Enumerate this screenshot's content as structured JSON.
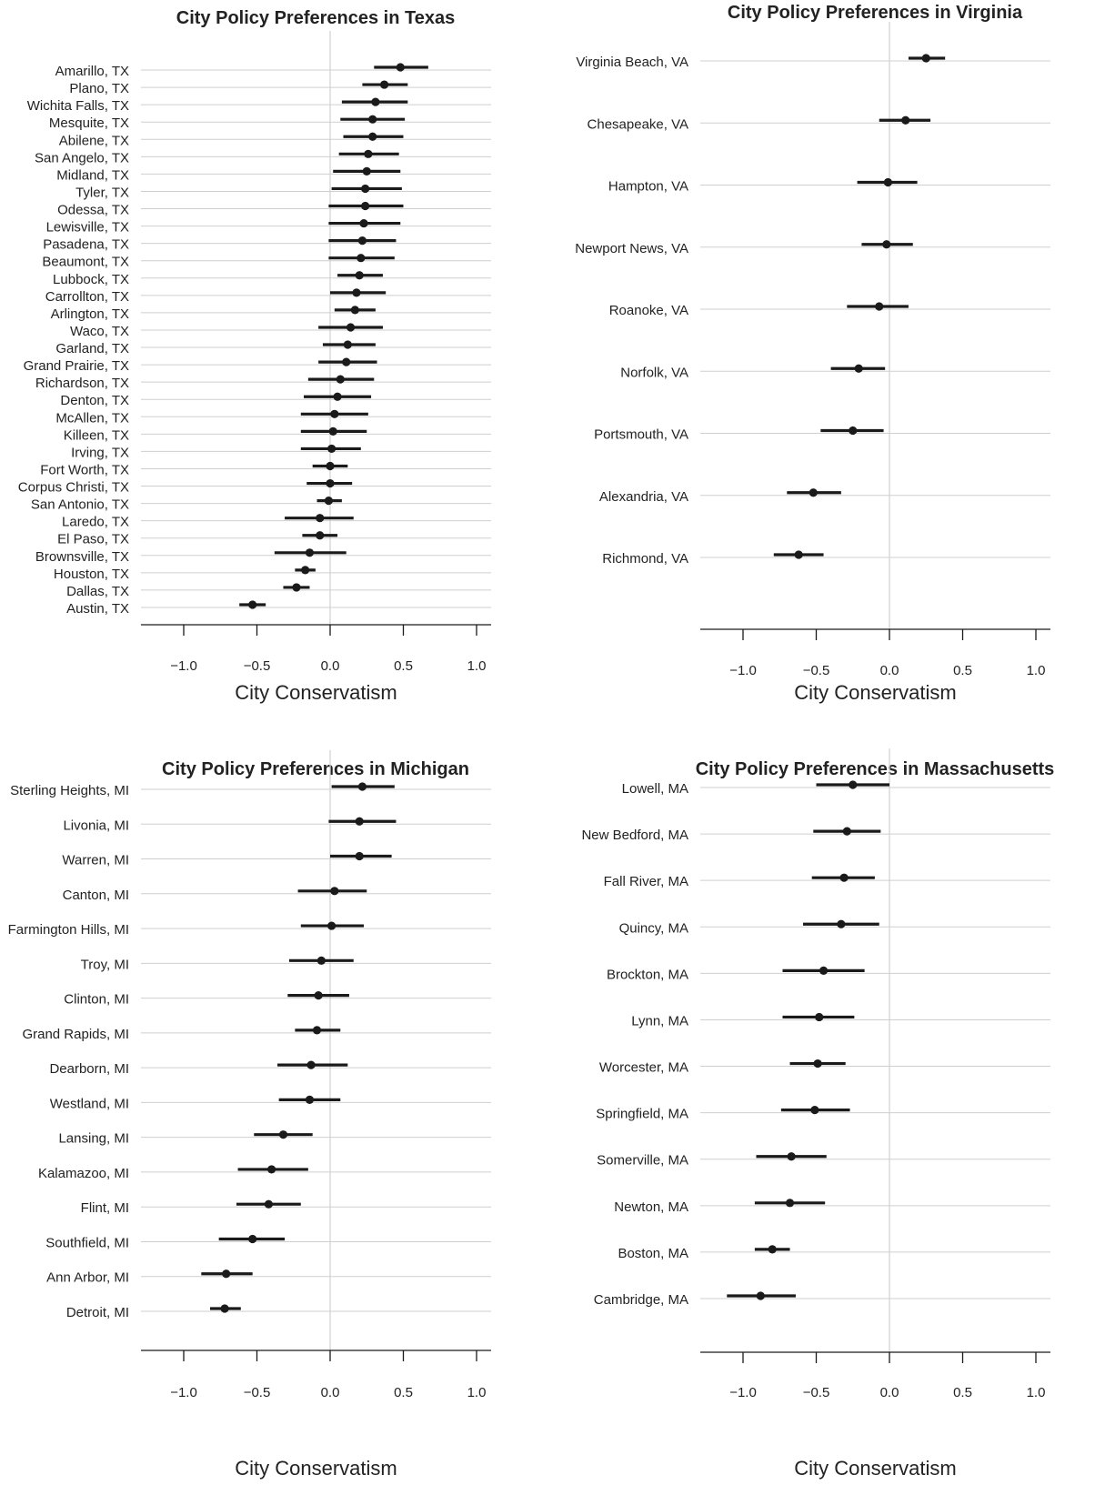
{
  "chart_data": [
    {
      "type": "scatter",
      "title": "City Policy Preferences in Texas",
      "xlabel": "City Conservatism",
      "xlim": [
        -1.2,
        1.05
      ],
      "xticks": [
        -1.0,
        -0.5,
        0.0,
        0.5,
        1.0
      ],
      "xtick_labels": [
        "−1.0",
        "−0.5",
        "0.0",
        "0.5",
        "1.0"
      ],
      "grid": true,
      "categories": [
        "Amarillo, TX",
        "Plano, TX",
        "Wichita Falls, TX",
        "Mesquite, TX",
        "Abilene, TX",
        "San Angelo, TX",
        "Midland, TX",
        "Tyler, TX",
        "Odessa, TX",
        "Lewisville, TX",
        "Pasadena, TX",
        "Beaumont, TX",
        "Lubbock, TX",
        "Carrollton, TX",
        "Arlington, TX",
        "Waco, TX",
        "Garland, TX",
        "Grand Prairie, TX",
        "Richardson, TX",
        "Denton, TX",
        "McAllen, TX",
        "Killeen, TX",
        "Irving, TX",
        "Fort Worth, TX",
        "Corpus Christi, TX",
        "San Antonio, TX",
        "Laredo, TX",
        "El Paso, TX",
        "Brownsville, TX",
        "Houston, TX",
        "Dallas, TX",
        "Austin, TX"
      ],
      "values": [
        0.48,
        0.37,
        0.31,
        0.29,
        0.29,
        0.26,
        0.25,
        0.24,
        0.24,
        0.23,
        0.22,
        0.21,
        0.2,
        0.18,
        0.17,
        0.14,
        0.12,
        0.11,
        0.07,
        0.05,
        0.03,
        0.02,
        0.01,
        0.0,
        0.0,
        -0.01,
        -0.07,
        -0.07,
        -0.14,
        -0.17,
        -0.23,
        -0.53
      ],
      "lower": [
        0.3,
        0.22,
        0.08,
        0.07,
        0.09,
        0.06,
        0.02,
        0.01,
        -0.01,
        -0.01,
        -0.01,
        -0.01,
        0.05,
        0.0,
        0.03,
        -0.08,
        -0.05,
        -0.08,
        -0.15,
        -0.18,
        -0.2,
        -0.2,
        -0.2,
        -0.12,
        -0.16,
        -0.09,
        -0.31,
        -0.19,
        -0.38,
        -0.24,
        -0.32,
        -0.62
      ],
      "upper": [
        0.67,
        0.53,
        0.53,
        0.51,
        0.5,
        0.47,
        0.48,
        0.49,
        0.5,
        0.48,
        0.45,
        0.44,
        0.36,
        0.38,
        0.31,
        0.36,
        0.31,
        0.32,
        0.3,
        0.28,
        0.26,
        0.25,
        0.21,
        0.12,
        0.15,
        0.08,
        0.16,
        0.05,
        0.11,
        -0.1,
        -0.14,
        -0.44
      ]
    },
    {
      "type": "scatter",
      "title": "City Policy Preferences in Virginia",
      "xlabel": "City Conservatism",
      "xlim": [
        -1.3,
        1.1
      ],
      "xticks": [
        -1.0,
        -0.5,
        0.0,
        0.5,
        1.0
      ],
      "xtick_labels": [
        "−1.0",
        "−0.5",
        "0.0",
        "0.5",
        "1.0"
      ],
      "grid": true,
      "categories": [
        "Virginia Beach, VA",
        "Chesapeake, VA",
        "Hampton, VA",
        "Newport News, VA",
        "Roanoke, VA",
        "Norfolk, VA",
        "Portsmouth, VA",
        "Alexandria, VA",
        "Richmond, VA"
      ],
      "values": [
        0.25,
        0.11,
        -0.01,
        -0.02,
        -0.07,
        -0.21,
        -0.25,
        -0.52,
        -0.62
      ],
      "lower": [
        0.13,
        -0.07,
        -0.22,
        -0.19,
        -0.29,
        -0.4,
        -0.47,
        -0.7,
        -0.79
      ],
      "upper": [
        0.38,
        0.28,
        0.19,
        0.16,
        0.13,
        -0.03,
        -0.04,
        -0.33,
        -0.45
      ]
    },
    {
      "type": "scatter",
      "title": "City Policy Preferences in Michigan",
      "xlabel": "City Conservatism",
      "xlim": [
        -1.2,
        1.05
      ],
      "xticks": [
        -1.0,
        -0.5,
        0.0,
        0.5,
        1.0
      ],
      "xtick_labels": [
        "−1.0",
        "−0.5",
        "0.0",
        "0.5",
        "1.0"
      ],
      "grid": true,
      "categories": [
        "Sterling Heights, MI",
        "Livonia, MI",
        "Warren, MI",
        "Canton, MI",
        "Farmington Hills, MI",
        "Troy, MI",
        "Clinton, MI",
        "Grand Rapids, MI",
        "Dearborn, MI",
        "Westland, MI",
        "Lansing, MI",
        "Kalamazoo, MI",
        "Flint, MI",
        "Southfield, MI",
        "Ann Arbor, MI",
        "Detroit, MI"
      ],
      "values": [
        0.22,
        0.2,
        0.2,
        0.03,
        0.01,
        -0.06,
        -0.08,
        -0.09,
        -0.13,
        -0.14,
        -0.32,
        -0.4,
        -0.42,
        -0.53,
        -0.71,
        -0.72
      ],
      "lower": [
        0.01,
        -0.01,
        0.0,
        -0.22,
        -0.2,
        -0.28,
        -0.29,
        -0.24,
        -0.36,
        -0.35,
        -0.52,
        -0.63,
        -0.64,
        -0.76,
        -0.88,
        -0.82
      ],
      "upper": [
        0.44,
        0.45,
        0.42,
        0.25,
        0.23,
        0.16,
        0.13,
        0.07,
        0.12,
        0.07,
        -0.12,
        -0.15,
        -0.2,
        -0.31,
        -0.53,
        -0.61
      ]
    },
    {
      "type": "scatter",
      "title": "City Policy Preferences in Massachusetts",
      "xlabel": "City Conservatism",
      "xlim": [
        -1.3,
        1.1
      ],
      "xticks": [
        -1.0,
        -0.5,
        0.0,
        0.5,
        1.0
      ],
      "xtick_labels": [
        "−1.0",
        "−0.5",
        "0.0",
        "0.5",
        "1.0"
      ],
      "grid": true,
      "categories": [
        "Lowell, MA",
        "New Bedford, MA",
        "Fall River, MA",
        "Quincy, MA",
        "Brockton, MA",
        "Lynn, MA",
        "Worcester, MA",
        "Springfield, MA",
        "Somerville, MA",
        "Newton, MA",
        "Boston, MA",
        "Cambridge, MA"
      ],
      "values": [
        -0.25,
        -0.29,
        -0.31,
        -0.33,
        -0.45,
        -0.48,
        -0.49,
        -0.51,
        -0.67,
        -0.68,
        -0.8,
        -0.88
      ],
      "lower": [
        -0.5,
        -0.52,
        -0.53,
        -0.59,
        -0.73,
        -0.73,
        -0.68,
        -0.74,
        -0.91,
        -0.92,
        -0.92,
        -1.11
      ],
      "upper": [
        0.0,
        -0.06,
        -0.1,
        -0.07,
        -0.17,
        -0.24,
        -0.3,
        -0.27,
        -0.43,
        -0.44,
        -0.68,
        -0.64
      ]
    }
  ]
}
